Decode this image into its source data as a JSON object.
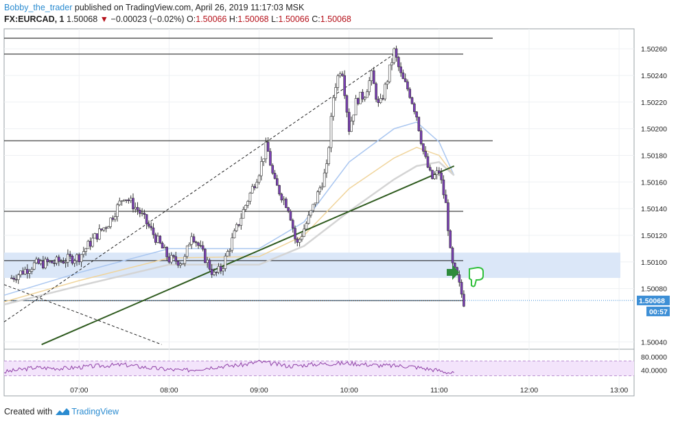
{
  "header": {
    "author": "Bobby_the_trader",
    "published": "published on TradingView.com, April 26, 2019 11:17:03 MSK",
    "symbol": "FX:EURCAD, 1",
    "last": "1.50068",
    "change": "−0.00023 (−0.02%)",
    "o_label": "O:",
    "o_val": "1.50066",
    "h_label": "H:",
    "h_val": "1.50068",
    "l_label": "L:",
    "l_val": "1.50066",
    "c_label": "C:",
    "c_val": "1.50068"
  },
  "footer": {
    "created": "Created with",
    "brand": "TradingView"
  },
  "colors": {
    "bull": "#ffffff",
    "bear": "#7b3fb5",
    "wick": "#333333",
    "ema_fast": "#a9c6f0",
    "ema_mid": "#f0d49b",
    "ema_slow": "#d4d4d4",
    "zone": "#dbe7f8",
    "trend": "#2e5a1e",
    "rsi": "#8e3fa6",
    "rsi_band": "#f3e4fb",
    "price_label": "#3d8fd6"
  },
  "chart_data": [
    {
      "type": "candlestick",
      "title": "",
      "x_ticks": [
        "07:00",
        "08:00",
        "09:00",
        "10:00",
        "11:00",
        "12:00",
        "13:00"
      ],
      "y_ticks": [
        1.5004,
        1.5008,
        1.501,
        1.5012,
        1.5014,
        1.5016,
        1.5018,
        1.502,
        1.5022,
        1.5024,
        1.5026
      ],
      "y_tick_labels": [
        "1.50040",
        "1.50080",
        "1.50100",
        "1.50120",
        "1.50140",
        "1.50160",
        "1.50180",
        "1.50200",
        "1.50220",
        "1.50240",
        "1.50260"
      ],
      "ylim": [
        1.50035,
        1.50275
      ],
      "xlim": [
        "06:10",
        "13:10"
      ],
      "last_price_label": "1.50068",
      "countdown_label": "00:57",
      "ohlc_points": [
        [
          "06:15",
          1.50088
        ],
        [
          "06:30",
          1.50098
        ],
        [
          "06:45",
          1.501
        ],
        [
          "07:00",
          1.50104
        ],
        [
          "07:10",
          1.50118
        ],
        [
          "07:20",
          1.5013
        ],
        [
          "07:30",
          1.5015
        ],
        [
          "07:40",
          1.50138
        ],
        [
          "07:50",
          1.5012
        ],
        [
          "08:00",
          1.50102
        ],
        [
          "08:10",
          1.501
        ],
        [
          "08:15",
          1.50122
        ],
        [
          "08:30",
          1.5009
        ],
        [
          "08:35",
          1.50095
        ],
        [
          "08:50",
          1.5014
        ],
        [
          "09:00",
          1.50168
        ],
        [
          "09:05",
          1.50188
        ],
        [
          "09:10",
          1.5016
        ],
        [
          "09:20",
          1.5014
        ],
        [
          "09:25",
          1.50112
        ],
        [
          "09:35",
          1.50138
        ],
        [
          "09:45",
          1.5017
        ],
        [
          "09:50",
          1.5023
        ],
        [
          "09:55",
          1.50248
        ],
        [
          "10:00",
          1.502
        ],
        [
          "10:05",
          1.50222
        ],
        [
          "10:10",
          1.50225
        ],
        [
          "10:15",
          1.5024
        ],
        [
          "10:20",
          1.50215
        ],
        [
          "10:25",
          1.50235
        ],
        [
          "10:30",
          1.50258
        ],
        [
          "10:35",
          1.50238
        ],
        [
          "10:40",
          1.50228
        ],
        [
          "10:45",
          1.5021
        ],
        [
          "10:50",
          1.5018
        ],
        [
          "10:55",
          1.50162
        ],
        [
          "11:00",
          1.50168
        ],
        [
          "11:05",
          1.5014
        ],
        [
          "11:08",
          1.501
        ],
        [
          "11:12",
          1.50088
        ],
        [
          "11:17",
          1.50068
        ]
      ],
      "series": [
        {
          "name": "EMA",
          "role": "fast",
          "x": [
            "06:10",
            "07:00",
            "08:00",
            "09:00",
            "09:30",
            "10:00",
            "10:30",
            "10:45",
            "11:00",
            "11:10"
          ],
          "values": [
            1.50075,
            1.50092,
            1.5011,
            1.5011,
            1.5013,
            1.50175,
            1.502,
            1.50205,
            1.5019,
            1.50165
          ]
        },
        {
          "name": "EMA",
          "role": "mid",
          "x": [
            "06:10",
            "07:00",
            "08:00",
            "09:00",
            "09:30",
            "10:00",
            "10:30",
            "10:45",
            "11:00",
            "11:10"
          ],
          "values": [
            1.5007,
            1.50086,
            1.50103,
            1.50104,
            1.5012,
            1.50155,
            1.50178,
            1.50186,
            1.5018,
            1.50165
          ]
        },
        {
          "name": "EMA",
          "role": "slow",
          "x": [
            "06:10",
            "07:00",
            "08:00",
            "09:00",
            "09:30",
            "10:00",
            "10:30",
            "10:45",
            "11:00",
            "11:10"
          ],
          "values": [
            1.50068,
            1.50082,
            1.50098,
            1.50098,
            1.50112,
            1.50138,
            1.50162,
            1.50172,
            1.50175,
            1.50165
          ]
        }
      ],
      "levels": [
        1.50268,
        1.50256,
        1.50191,
        1.50138,
        1.50101,
        1.50071
      ],
      "zone": [
        1.50088,
        1.50107
      ],
      "current_price": 1.50068,
      "trend_lines": [
        {
          "from": [
            "06:35",
            1.50038
          ],
          "to": [
            "11:10",
            1.50172
          ],
          "style": "solid"
        },
        {
          "from": [
            "06:10",
            1.50055
          ],
          "to": [
            "10:30",
            1.50256
          ],
          "style": "dashed"
        },
        {
          "from": [
            "06:10",
            1.50083
          ],
          "to": [
            "07:55",
            1.50038
          ],
          "style": "dashed"
        }
      ]
    },
    {
      "type": "line",
      "title": "",
      "y_tick_labels": [
        "80.0000",
        "40.0000"
      ],
      "ylim": [
        20,
        100
      ],
      "bands": [
        70,
        30
      ],
      "x": [
        "06:10",
        "06:30",
        "06:50",
        "07:10",
        "07:30",
        "07:50",
        "08:10",
        "08:30",
        "08:50",
        "09:00",
        "09:20",
        "09:40",
        "10:00",
        "10:20",
        "10:40",
        "11:00",
        "11:10"
      ],
      "values": [
        40,
        52,
        50,
        56,
        60,
        50,
        44,
        54,
        60,
        68,
        56,
        62,
        64,
        58,
        56,
        44,
        36
      ]
    }
  ]
}
